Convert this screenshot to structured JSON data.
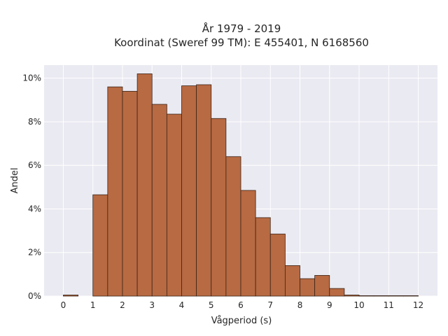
{
  "chart_data": {
    "type": "bar",
    "title_line1": "År 1979 - 2019",
    "title_line2": "Koordinat (Sweref 99 TM): E 455401, N 6168560",
    "xlabel": "Vågperiod (s)",
    "ylabel": "Andel",
    "xlim": [
      -0.65,
      12.65
    ],
    "ylim": [
      0,
      10.6
    ],
    "x_ticks": [
      0,
      1,
      2,
      3,
      4,
      5,
      6,
      7,
      8,
      9,
      10,
      11,
      12
    ],
    "y_ticks": [
      0,
      2,
      4,
      6,
      8,
      10
    ],
    "y_tick_labels": [
      "0%",
      "2%",
      "4%",
      "6%",
      "8%",
      "10%"
    ],
    "grid": true,
    "bin_width": 0.5,
    "bins": [
      {
        "start": 0.0,
        "value": 0.05
      },
      {
        "start": 1.0,
        "value": 4.65
      },
      {
        "start": 1.5,
        "value": 9.6
      },
      {
        "start": 2.0,
        "value": 9.4
      },
      {
        "start": 2.5,
        "value": 10.2
      },
      {
        "start": 3.0,
        "value": 8.8
      },
      {
        "start": 3.5,
        "value": 8.35
      },
      {
        "start": 4.0,
        "value": 9.65
      },
      {
        "start": 4.5,
        "value": 9.7
      },
      {
        "start": 5.0,
        "value": 8.15
      },
      {
        "start": 5.5,
        "value": 6.4
      },
      {
        "start": 6.0,
        "value": 4.85
      },
      {
        "start": 6.5,
        "value": 3.6
      },
      {
        "start": 7.0,
        "value": 2.85
      },
      {
        "start": 7.5,
        "value": 1.4
      },
      {
        "start": 8.0,
        "value": 0.8
      },
      {
        "start": 8.5,
        "value": 0.95
      },
      {
        "start": 9.0,
        "value": 0.35
      },
      {
        "start": 9.5,
        "value": 0.05
      },
      {
        "start": 10.0,
        "value": 0.02
      },
      {
        "start": 10.5,
        "value": 0.02
      },
      {
        "start": 11.0,
        "value": 0.02
      },
      {
        "start": 11.5,
        "value": 0.02
      }
    ],
    "colors": {
      "bar_fill": "#b86a42",
      "bar_edge": "#3a2418",
      "plot_bg": "#eaeaf2",
      "grid": "#ffffff"
    }
  }
}
